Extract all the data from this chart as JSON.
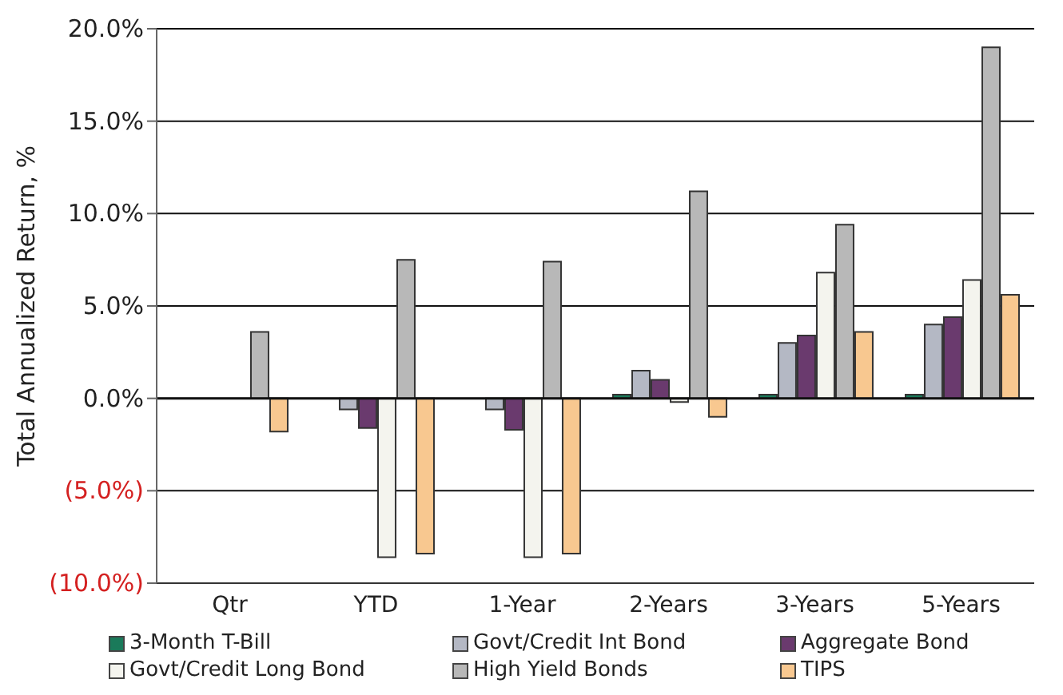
{
  "chart_data": {
    "type": "bar",
    "ylabel": "Total Annualized Return, %",
    "categories": [
      "Qtr",
      "YTD",
      "1-Year",
      "2-Years",
      "3-Years",
      "5-Years"
    ],
    "series": [
      {
        "name": "3-Month T-Bill",
        "color": "#1a7a5a",
        "values": [
          null,
          null,
          null,
          0.2,
          0.2,
          0.2
        ]
      },
      {
        "name": "Govt/Credit Int Bond",
        "color": "#b4b8c4",
        "values": [
          null,
          -0.6,
          -0.6,
          1.5,
          3.0,
          4.0
        ]
      },
      {
        "name": "Aggregate Bond",
        "color": "#6a3a6e",
        "values": [
          null,
          -1.6,
          -1.7,
          1.0,
          3.4,
          4.4
        ]
      },
      {
        "name": "Govt/Credit Long Bond",
        "color": "#f4f4ee",
        "values": [
          null,
          -8.6,
          -8.6,
          -0.2,
          6.8,
          6.4
        ]
      },
      {
        "name": "High Yield Bonds",
        "color": "#b8b8b8",
        "values": [
          3.6,
          7.5,
          7.4,
          11.2,
          9.4,
          19.0
        ]
      },
      {
        "name": "TIPS",
        "color": "#f8c890",
        "values": [
          -1.8,
          -8.4,
          -8.4,
          -1.0,
          3.6,
          5.6
        ]
      }
    ],
    "ylim": [
      -10,
      20
    ],
    "yticks": [
      {
        "value": -10,
        "label": "(10.0%)"
      },
      {
        "value": -5,
        "label": "(5.0%)"
      },
      {
        "value": 0,
        "label": "0.0%"
      },
      {
        "value": 5,
        "label": "5.0%"
      },
      {
        "value": 10,
        "label": "10.0%"
      },
      {
        "value": 15,
        "label": "15.0%"
      },
      {
        "value": 20,
        "label": "20.0%"
      }
    ],
    "grid": "y",
    "legend": "bottom"
  }
}
